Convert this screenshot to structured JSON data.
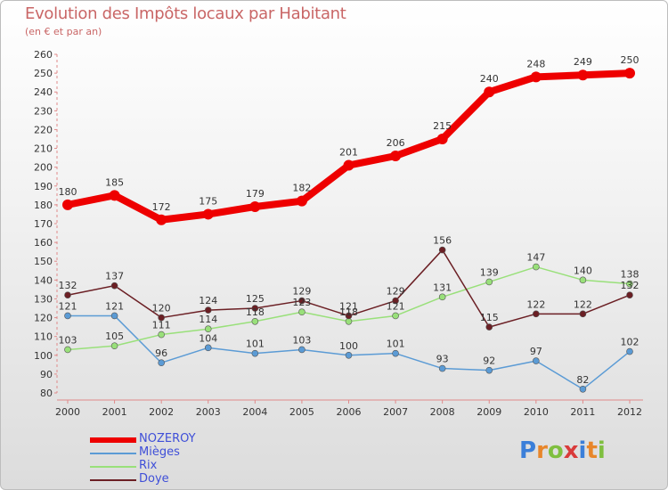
{
  "title": "Evolution des Impôts locaux par Habitant",
  "subtitle": "(en € et par an)",
  "logo": {
    "text": "Proxiti",
    "letters": [
      {
        "char": "P",
        "color": "#3b7fd9"
      },
      {
        "char": "r",
        "color": "#e8862a"
      },
      {
        "char": "o",
        "color": "#7fbf3f"
      },
      {
        "char": "x",
        "color": "#d93b3b"
      },
      {
        "char": "i",
        "color": "#3b7fd9"
      },
      {
        "char": "t",
        "color": "#e8862a"
      },
      {
        "char": "i",
        "color": "#7fbf3f"
      }
    ]
  },
  "chart_data": {
    "type": "line",
    "title": "Evolution des Impôts locaux par Habitant",
    "subtitle": "(en € et par an)",
    "xlabel": "",
    "ylabel": "",
    "x": [
      2000,
      2001,
      2002,
      2003,
      2004,
      2005,
      2006,
      2007,
      2008,
      2009,
      2010,
      2011,
      2012
    ],
    "ylim": [
      80,
      260
    ],
    "yticks": [
      80,
      90,
      100,
      110,
      120,
      130,
      140,
      150,
      160,
      170,
      180,
      190,
      200,
      210,
      220,
      230,
      240,
      250,
      260
    ],
    "grid": false,
    "legend_position": "bottom-left",
    "series": [
      {
        "name": "NOZEROY",
        "color": "#ee0000",
        "values": [
          180,
          185,
          172,
          175,
          179,
          182,
          201,
          206,
          215,
          240,
          248,
          249,
          250
        ]
      },
      {
        "name": "Mièges",
        "color": "#5b9bd5",
        "values": [
          121,
          121,
          96,
          104,
          101,
          103,
          100,
          101,
          93,
          92,
          97,
          82,
          102
        ]
      },
      {
        "name": "Rix",
        "color": "#99e07a",
        "values": [
          103,
          105,
          111,
          114,
          118,
          123,
          118,
          121,
          131,
          139,
          147,
          140,
          138
        ]
      },
      {
        "name": "Doye",
        "color": "#6b1f24",
        "values": [
          132,
          137,
          120,
          124,
          125,
          129,
          121,
          129,
          156,
          115,
          122,
          122,
          132
        ]
      }
    ]
  }
}
